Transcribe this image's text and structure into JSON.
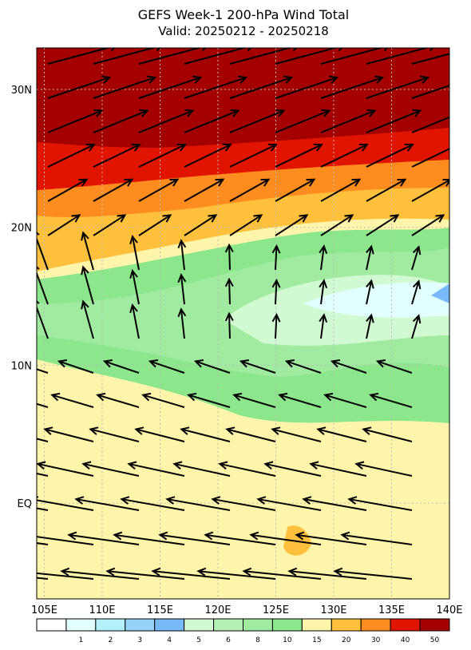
{
  "title": "GEFS Week-1 200-hPa Wind Total",
  "subtitle": "Valid: 20250212 - 20250218",
  "lat_labels": [
    "30N",
    "20N",
    "10N",
    "EQ"
  ],
  "lon_labels": [
    "105E",
    "110E",
    "115E",
    "120E",
    "125E",
    "130E",
    "135E",
    "140E"
  ],
  "colorbar": {
    "labels": [
      "1",
      "2",
      "3",
      "4",
      "5",
      "6",
      "8",
      "10",
      "15",
      "20",
      "30",
      "40",
      "50"
    ],
    "colors": [
      "#ffffff",
      "#e1ffff",
      "#b4f0fa",
      "#96d2fa",
      "#78b9fa",
      "#d2fad2",
      "#b4f0b4",
      "#a0eba0",
      "#8ce68c",
      "#fff5aa",
      "#ffc03c",
      "#ff8c1e",
      "#e11400",
      "#a50000"
    ]
  }
}
